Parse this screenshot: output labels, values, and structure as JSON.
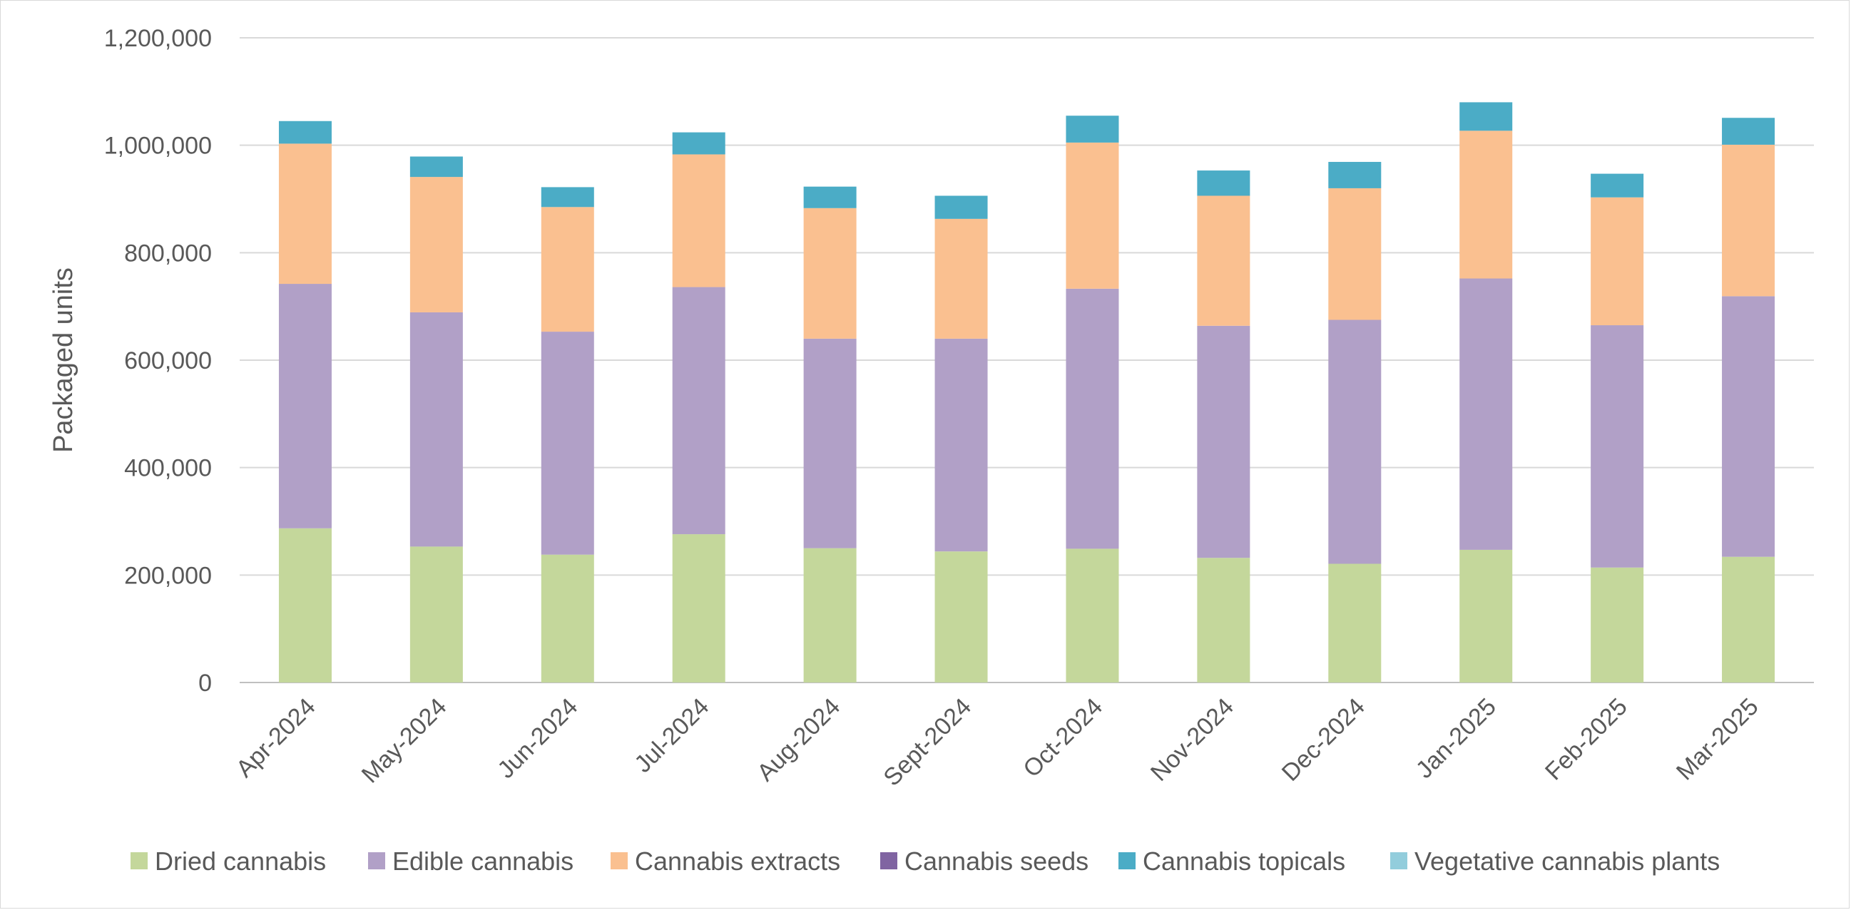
{
  "chart_data": {
    "type": "bar",
    "stacked": true,
    "title": "",
    "xlabel": "",
    "ylabel": "Packaged units",
    "ylim": [
      0,
      1200000
    ],
    "yticks": [
      0,
      200000,
      400000,
      600000,
      800000,
      1000000,
      1200000
    ],
    "ytick_labels": [
      "0",
      "200,000",
      "400,000",
      "600,000",
      "800,000",
      "1,000,000",
      "1,200,000"
    ],
    "grid": true,
    "legend_position": "bottom",
    "categories": [
      "Apr-2024",
      "May-2024",
      "Jun-2024",
      "Jul-2024",
      "Aug-2024",
      "Sept-2024",
      "Oct-2024",
      "Nov-2024",
      "Dec-2024",
      "Jan-2025",
      "Feb-2025",
      "Mar-2025"
    ],
    "series": [
      {
        "name": "Dried cannabis",
        "color": "#c4d79b",
        "values": [
          287000,
          253000,
          238000,
          276000,
          250000,
          244000,
          249000,
          232000,
          221000,
          247000,
          214000,
          234000
        ]
      },
      {
        "name": "Edible cannabis",
        "color": "#b1a0c7",
        "values": [
          455000,
          436000,
          415000,
          460000,
          390000,
          396000,
          484000,
          432000,
          454000,
          505000,
          451000,
          485000
        ]
      },
      {
        "name": "Cannabis extracts",
        "color": "#fac090",
        "values": [
          261000,
          252000,
          232000,
          247000,
          243000,
          223000,
          272000,
          242000,
          245000,
          275000,
          238000,
          282000
        ]
      },
      {
        "name": "Cannabis seeds",
        "color": "#8064a2",
        "values": [
          0,
          0,
          0,
          0,
          0,
          0,
          0,
          0,
          0,
          0,
          0,
          0
        ]
      },
      {
        "name": "Cannabis topicals",
        "color": "#4bacc6",
        "values": [
          42000,
          38000,
          37000,
          41000,
          40000,
          43000,
          50000,
          47000,
          49000,
          53000,
          44000,
          50000
        ]
      },
      {
        "name": "Vegetative cannabis plants",
        "color": "#92cddc",
        "values": [
          0,
          0,
          0,
          0,
          0,
          0,
          0,
          0,
          0,
          0,
          0,
          0
        ]
      }
    ]
  }
}
